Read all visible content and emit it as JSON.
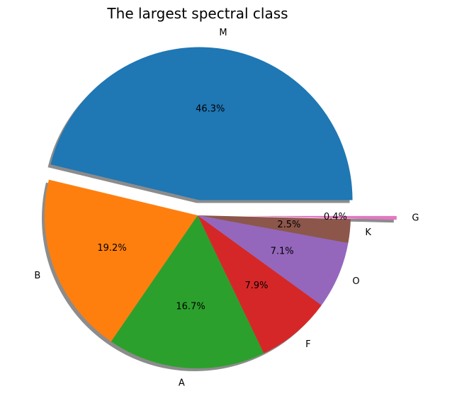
{
  "chart_data": {
    "type": "pie",
    "title": "The largest spectral class",
    "labels": [
      "M",
      "B",
      "A",
      "F",
      "O",
      "K",
      "G"
    ],
    "values": [
      46.3,
      19.2,
      16.7,
      7.9,
      7.1,
      2.5,
      0.4
    ],
    "percent_labels": [
      "46.3%",
      "19.2%",
      "16.7%",
      "7.9%",
      "7.1%",
      "2.5%",
      "0.4%"
    ],
    "colors": [
      "#1f77b4",
      "#ff7f0e",
      "#2ca02c",
      "#d62728",
      "#9467bd",
      "#8c564b",
      "#e377c2"
    ],
    "explode": [
      0.1,
      0,
      0,
      0,
      0,
      0,
      0.3
    ],
    "start_angle_deg": 0,
    "direction": "counterclockwise",
    "shadow": true,
    "legend": "none"
  }
}
